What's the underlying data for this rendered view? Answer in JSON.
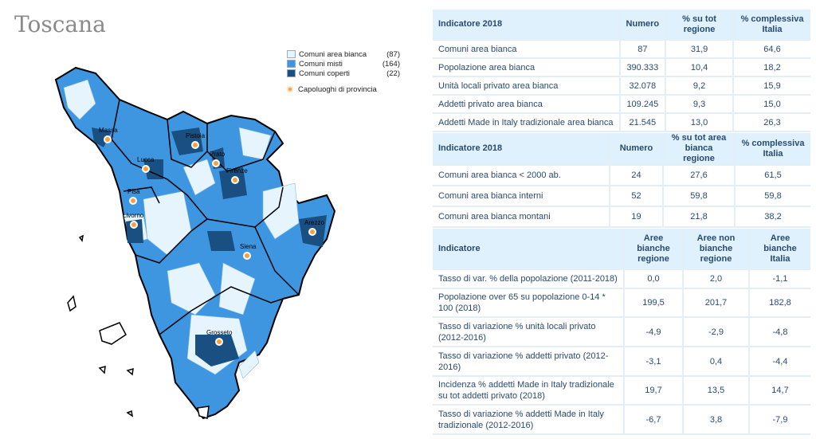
{
  "title": "Toscana",
  "legend": {
    "items": [
      {
        "label": "Comuni area bianca",
        "count": "(87)",
        "color": "#e6f4fd"
      },
      {
        "label": "Comuni misti",
        "count": "(164)",
        "color": "#3f96e0"
      },
      {
        "label": "Comuni coperti",
        "count": "(22)",
        "color": "#1a4f82"
      }
    ],
    "capoluoghi": "Capoluoghi di provincia"
  },
  "cities": [
    "Massa",
    "Lucca",
    "Pistoia",
    "Prato",
    "Firenze",
    "Pisa",
    "Livorno",
    "Arezzo",
    "Siena",
    "Grosseto"
  ],
  "table1": {
    "headers": [
      "Indicatore 2018",
      "Numero",
      "% su tot regione",
      "% complessiva Italia"
    ],
    "rows": [
      [
        "Comuni area bianca",
        "87",
        "31,9",
        "64,6"
      ],
      [
        "Popolazione area bianca",
        "390.333",
        "10,4",
        "18,2"
      ],
      [
        "Unità locali privato area bianca",
        "32.078",
        "9,2",
        "15,9"
      ],
      [
        "Addetti privato area bianca",
        "109.245",
        "9,3",
        "15,0"
      ],
      [
        "Addetti Made in Italy tradizionale area bianca",
        "21.545",
        "13,0",
        "26,3"
      ]
    ]
  },
  "table2": {
    "headers": [
      "Indicatore 2018",
      "Numero",
      "% su tot area bianca regione",
      "% complessiva Italia"
    ],
    "rows": [
      [
        "Comuni area bianca < 2000 ab.",
        "24",
        "27,6",
        "61,5"
      ],
      [
        "Comuni area bianca interni",
        "52",
        "59,8",
        "59,8"
      ],
      [
        "Comuni area bianca montani",
        "19",
        "21,8",
        "38,2"
      ]
    ]
  },
  "table3": {
    "headers": [
      "Indicatore",
      "Aree bianche regione",
      "Aree non bianche regione",
      "Aree bianche Italia"
    ],
    "rows": [
      [
        "Tasso di var. % della popolazione (2011-2018)",
        "0,0",
        "2,0",
        "-1,1"
      ],
      [
        "Popolazione over 65 su popolazione 0-14 * 100 (2018)",
        "199,5",
        "201,7",
        "182,8"
      ],
      [
        "Tasso di variazione % unità locali privato (2012-2016)",
        "-4,9",
        "-2,9",
        "-4,8"
      ],
      [
        "Tasso di variazione % addetti privato (2012-2016)",
        "-3,1",
        "0,4",
        "-4,4"
      ],
      [
        "Incidenza % addetti Made in Italy tradizionale su tot addetti privato (2018)",
        "19,7",
        "13,5",
        "14,7"
      ],
      [
        "Tasso di variazione % addetti Made in Italy tradizionale (2012-2016)",
        "-6,7",
        "3,8",
        "-7,9"
      ]
    ]
  }
}
